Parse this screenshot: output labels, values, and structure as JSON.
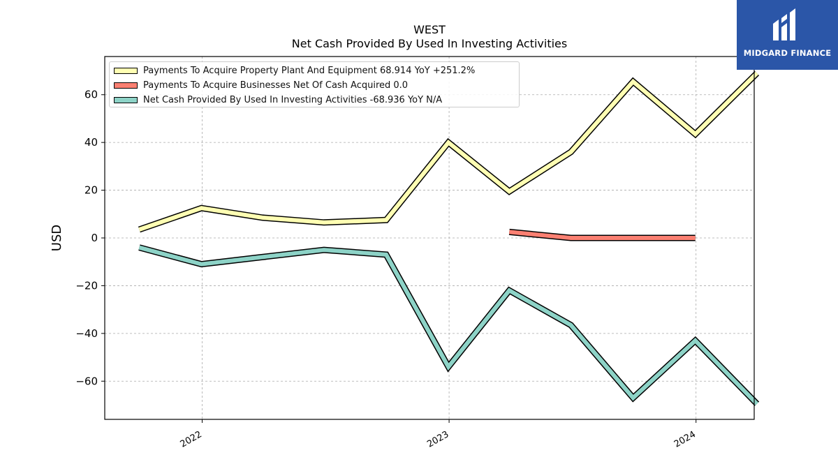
{
  "brand": {
    "name": "MIDGARD FINANCE",
    "logo_icon": "midgard-m-logo-icon",
    "background_color": "#2b56a8"
  },
  "chart_data": {
    "type": "line",
    "title": "WEST",
    "subtitle": "Net Cash Provided By Used In Investing Activities",
    "ylabel": "USD",
    "xlabel": "",
    "ylim": [
      -76,
      76
    ],
    "yticks": [
      -60,
      -40,
      -20,
      0,
      20,
      40,
      60
    ],
    "ytick_labels": [
      "−60",
      "−40",
      "−20",
      "0",
      "20",
      "40",
      "60"
    ],
    "xlim": [
      "2021-08-10",
      "2024-03-27"
    ],
    "xticks": [
      "2022-01-01",
      "2023-01-01",
      "2024-01-01"
    ],
    "xtick_labels": [
      "2022",
      "2023",
      "2024"
    ],
    "grid": true,
    "legend_position": "top-left",
    "series": [
      {
        "name": "Payments To Acquire Property Plant And Equipment  68.914 YoY +251.2%",
        "color": "#ffffb3",
        "x": [
          "2021-09-30",
          "2021-12-31",
          "2022-03-31",
          "2022-06-30",
          "2022-09-30",
          "2022-12-31",
          "2023-03-31",
          "2023-06-30",
          "2023-09-30",
          "2023-12-31",
          "2024-03-31"
        ],
        "values": [
          3.5,
          12.5,
          8.5,
          6.5,
          7.5,
          40.0,
          19.5,
          36.0,
          65.5,
          43.5,
          69.0
        ]
      },
      {
        "name": "Payments To Acquire Businesses Net Of Cash Acquired  0.0",
        "color": "#fb8072",
        "x": [
          "2023-03-31",
          "2023-06-30",
          "2023-09-30",
          "2023-12-31"
        ],
        "values": [
          2.5,
          0.0,
          0.0,
          0.0
        ]
      },
      {
        "name": "Net Cash Provided By Used In Investing Activities  -68.936 YoY N/A",
        "color": "#8dd3c7",
        "x": [
          "2021-09-30",
          "2021-12-31",
          "2022-03-31",
          "2022-06-30",
          "2022-09-30",
          "2022-12-31",
          "2023-03-31",
          "2023-06-30",
          "2023-09-30",
          "2023-12-31",
          "2024-03-31"
        ],
        "values": [
          -4.0,
          -11.0,
          -8.0,
          -5.0,
          -7.0,
          -54.0,
          -22.0,
          -36.5,
          -67.0,
          -43.0,
          -69.5
        ]
      }
    ]
  }
}
